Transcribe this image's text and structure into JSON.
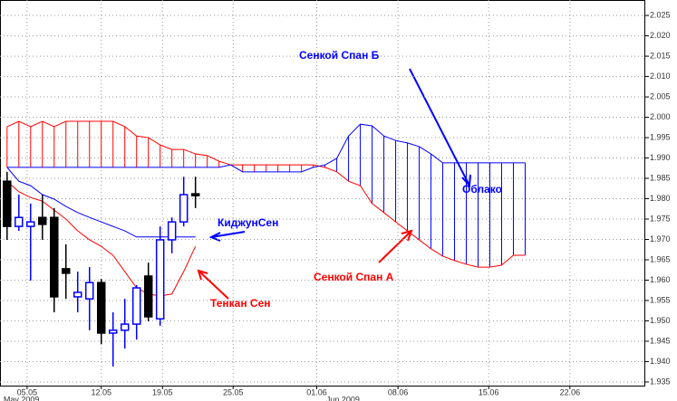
{
  "chart_data": {
    "type": "candlestick",
    "up_color": "#0000ff",
    "down_color": "#000000",
    "x": [
      0,
      1,
      2,
      3,
      4,
      5,
      6,
      7,
      8,
      9,
      10,
      11,
      12,
      13,
      14,
      15,
      16
    ],
    "open": [
      1.9843,
      1.9732,
      1.9732,
      1.9754,
      1.9754,
      1.9628,
      1.9559,
      1.9554,
      1.9594,
      1.947,
      1.9477,
      1.9492,
      1.961,
      1.9505,
      1.9699,
      1.9743,
      1.9812
    ],
    "high": [
      1.9866,
      1.981,
      1.9788,
      1.981,
      1.9777,
      1.9688,
      1.9621,
      1.9632,
      1.9603,
      1.9521,
      1.9554,
      1.9588,
      1.9643,
      1.9732,
      1.9754,
      1.9854,
      1.9854
    ],
    "low": [
      1.9699,
      1.9721,
      1.9599,
      1.9699,
      1.9521,
      1.9554,
      1.9521,
      1.9477,
      1.9443,
      1.9388,
      1.9432,
      1.9454,
      1.9499,
      1.9488,
      1.9666,
      1.9732,
      1.9777
    ],
    "close": [
      1.9732,
      1.9754,
      1.9743,
      1.9737,
      1.9559,
      1.9617,
      1.957,
      1.9594,
      1.947,
      1.9477,
      1.9492,
      1.9581,
      1.951,
      1.9699,
      1.9743,
      1.981,
      1.9808
    ],
    "series": [
      {
        "name": "Тенкан Сен",
        "color": "#ff0000",
        "x": [
          0,
          1,
          2,
          3,
          4,
          5,
          6,
          7,
          8,
          9,
          10,
          11,
          12,
          13,
          14,
          15,
          16
        ],
        "values": [
          1.9843,
          1.9817,
          1.9803,
          1.9794,
          1.9772,
          1.975,
          1.9721,
          1.9699,
          1.9683,
          1.9661,
          1.9621,
          1.9581,
          1.9566,
          1.9561,
          1.9566,
          1.9621,
          1.9683
        ]
      },
      {
        "name": "КиджунСен",
        "color": "#0000ff",
        "x": [
          0,
          1,
          2,
          3,
          4,
          5,
          6,
          7,
          8,
          9,
          10,
          11,
          12,
          13,
          14,
          15,
          16
        ],
        "values": [
          1.9877,
          1.9843,
          1.9832,
          1.981,
          1.9799,
          1.9781,
          1.9766,
          1.9754,
          1.9743,
          1.9732,
          1.9721,
          1.9706,
          1.9706,
          1.9706,
          1.9706,
          1.9706,
          1.9706
        ]
      },
      {
        "name": "Сенкой Спан А",
        "color": "#ff0000",
        "x": [
          0,
          1,
          2,
          3,
          4,
          5,
          6,
          7,
          8,
          9,
          10,
          11,
          12,
          13,
          14,
          15,
          16,
          17,
          18,
          19,
          20,
          21,
          22,
          23,
          24,
          25,
          26,
          27,
          28,
          29,
          30,
          31,
          32,
          33,
          34,
          35,
          36,
          37,
          38,
          39,
          40,
          41,
          42,
          43,
          44
        ],
        "values": [
          1.9977,
          1.999,
          1.9977,
          1.999,
          1.9977,
          1.999,
          1.999,
          1.999,
          1.999,
          1.999,
          1.9977,
          1.9954,
          1.995,
          1.9932,
          1.9921,
          1.9921,
          1.991,
          1.9906,
          1.9892,
          1.9883,
          1.9883,
          1.9883,
          1.9883,
          1.9883,
          1.9883,
          1.9883,
          1.9883,
          1.9877,
          1.9866,
          1.9843,
          1.9832,
          1.9788,
          1.9766,
          1.9743,
          1.9721,
          1.9699,
          1.9677,
          1.9659,
          1.9648,
          1.9639,
          1.9632,
          1.9632,
          1.9637,
          1.9661,
          1.9661
        ]
      },
      {
        "name": "Сенкой Спан Б",
        "color": "#0000ff",
        "x": [
          0,
          1,
          2,
          3,
          4,
          5,
          6,
          7,
          8,
          9,
          10,
          11,
          12,
          13,
          14,
          15,
          16,
          17,
          18,
          19,
          20,
          21,
          22,
          23,
          24,
          25,
          26,
          27,
          28,
          29,
          30,
          31,
          32,
          33,
          34,
          35,
          36,
          37,
          38,
          39,
          40,
          41,
          42,
          43,
          44
        ],
        "values": [
          1.9877,
          1.9877,
          1.9877,
          1.9877,
          1.9877,
          1.9877,
          1.9877,
          1.9877,
          1.9877,
          1.9877,
          1.9877,
          1.9877,
          1.9877,
          1.9877,
          1.9877,
          1.9877,
          1.9877,
          1.9877,
          1.9877,
          1.9883,
          1.9866,
          1.9866,
          1.9866,
          1.9866,
          1.9866,
          1.9866,
          1.9877,
          1.9883,
          1.9899,
          1.9954,
          1.9983,
          1.9979,
          1.9954,
          1.9943,
          1.9937,
          1.9928,
          1.991,
          1.9888,
          1.9888,
          1.9888,
          1.9888,
          1.9888,
          1.9888,
          1.9888,
          1.9888
        ]
      }
    ],
    "cloud_label": "Облако",
    "months": [
      {
        "value": -0.3,
        "label": "May 2009"
      },
      {
        "value": 27.1,
        "label": "Jun 2009"
      }
    ],
    "xlim": [
      -0.6,
      54.2
    ],
    "xticks": [
      {
        "value": 1.7,
        "label": "05.05"
      },
      {
        "value": 8,
        "label": "12.05"
      },
      {
        "value": 13.2,
        "label": "19.05"
      },
      {
        "value": 19.2,
        "label": "25.05"
      },
      {
        "value": 26.3,
        "label": "01.06"
      },
      {
        "value": 33.2,
        "label": "08.06"
      },
      {
        "value": 40.9,
        "label": "15.06"
      },
      {
        "value": 47.8,
        "label": "22.06"
      }
    ],
    "ylim": [
      1.9341,
      2.0288
    ],
    "yticks": [
      2.025,
      {
        "value": 2.02,
        "label": "2.020"
      },
      2.015,
      {
        "value": 2.01,
        "label": "2.010"
      },
      2.005,
      {
        "value": 2.0,
        "label": "2.000"
      },
      1.995,
      {
        "value": 1.99,
        "label": "1.990"
      },
      1.985,
      {
        "value": 1.98,
        "label": "1.980"
      },
      1.975,
      {
        "value": 1.97,
        "label": "1.970"
      },
      1.965,
      {
        "value": 1.96,
        "label": "1.960"
      },
      1.955,
      {
        "value": 1.95,
        "label": "1.950"
      },
      1.945,
      {
        "value": 1.94,
        "label": "1.940"
      },
      1.935
    ],
    "grid": true
  }
}
